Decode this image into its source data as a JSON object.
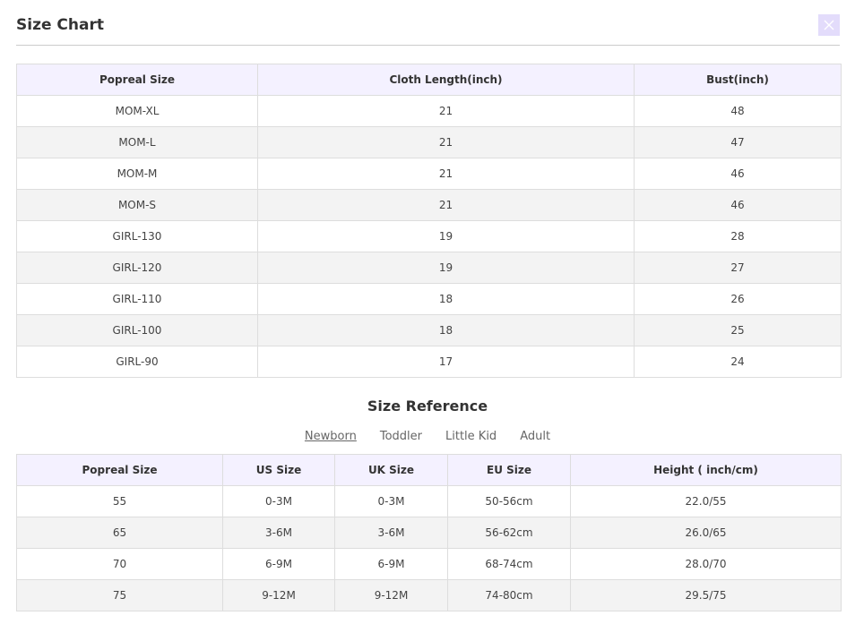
{
  "header": {
    "title": "Size Chart"
  },
  "size_chart": {
    "columns": [
      "Popreal Size",
      "Cloth Length(inch)",
      "Bust(inch)"
    ],
    "rows": [
      [
        "MOM-XL",
        "21",
        "48"
      ],
      [
        "MOM-L",
        "21",
        "47"
      ],
      [
        "MOM-M",
        "21",
        "46"
      ],
      [
        "MOM-S",
        "21",
        "46"
      ],
      [
        "GIRL-130",
        "19",
        "28"
      ],
      [
        "GIRL-120",
        "19",
        "27"
      ],
      [
        "GIRL-110",
        "18",
        "26"
      ],
      [
        "GIRL-100",
        "18",
        "25"
      ],
      [
        "GIRL-90",
        "17",
        "24"
      ]
    ]
  },
  "size_reference": {
    "title": "Size Reference",
    "tabs": [
      "Newborn",
      "Toddler",
      "Little Kid",
      "Adult"
    ],
    "columns": [
      "Popreal Size",
      "US Size",
      "UK Size",
      "EU Size",
      "Height ( inch/cm)"
    ],
    "rows": [
      [
        "55",
        "0-3M",
        "0-3M",
        "50-56cm",
        "22.0/55"
      ],
      [
        "65",
        "3-6M",
        "3-6M",
        "56-62cm",
        "26.0/65"
      ],
      [
        "70",
        "6-9M",
        "6-9M",
        "68-74cm",
        "28.0/70"
      ],
      [
        "75",
        "9-12M",
        "9-12M",
        "74-80cm",
        "29.5/75"
      ]
    ]
  }
}
